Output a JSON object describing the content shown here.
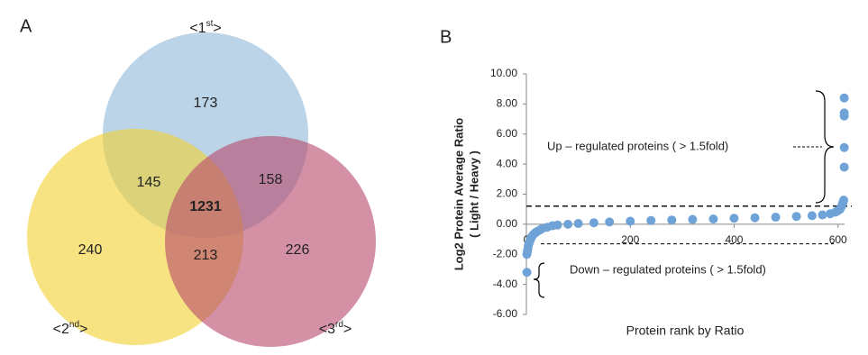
{
  "chart_data": [
    {
      "type": "venn",
      "panel_label": "A",
      "sets": [
        {
          "name_parts": [
            "<1",
            "st",
            ">"
          ],
          "color": "#8fb8d8"
        },
        {
          "name_parts": [
            "<2",
            "nd",
            ">"
          ],
          "color": "#f2d02e"
        },
        {
          "name_parts": [
            "<3",
            "rd",
            ">"
          ],
          "color": "#b8476a"
        }
      ],
      "regions": {
        "only_1": 173,
        "only_2": 240,
        "only_3": 226,
        "1_2": 145,
        "1_3": 158,
        "2_3": 213,
        "1_2_3": 1231
      }
    },
    {
      "type": "scatter",
      "panel_label": "B",
      "x_label": "Protein rank by Ratio",
      "y_label_lines": [
        "Log2 Protein Average Ratio",
        "( Light / Heavy )"
      ],
      "color": "#6fa3d8",
      "x": [
        1,
        1,
        2,
        3,
        4,
        6,
        8,
        10,
        13,
        16,
        20,
        25,
        30,
        40,
        50,
        60,
        80,
        100,
        130,
        160,
        200,
        240,
        280,
        320,
        360,
        400,
        440,
        480,
        520,
        550,
        570,
        585,
        595,
        600,
        604,
        607,
        609,
        610,
        611,
        612,
        612,
        612,
        612,
        612
      ],
      "values": [
        -3.2,
        -2.0,
        -1.8,
        -1.6,
        -1.4,
        -1.2,
        -1.0,
        -0.85,
        -0.7,
        -0.6,
        -0.5,
        -0.4,
        -0.3,
        -0.2,
        -0.1,
        -0.05,
        0.0,
        0.05,
        0.1,
        0.15,
        0.2,
        0.25,
        0.28,
        0.32,
        0.35,
        0.4,
        0.43,
        0.47,
        0.52,
        0.57,
        0.62,
        0.7,
        0.8,
        0.9,
        1.0,
        1.2,
        1.4,
        1.5,
        1.6,
        3.8,
        5.1,
        7.2,
        7.4,
        8.4
      ],
      "xlim": [
        0,
        630
      ],
      "xticks": [
        0,
        200,
        400,
        600
      ],
      "ylim": [
        -6,
        10
      ],
      "yticks": [
        {
          "value": -6,
          "label": "-6.00"
        },
        {
          "value": -4,
          "label": "-4.00"
        },
        {
          "value": -2,
          "label": "-2.00"
        },
        {
          "value": 0,
          "label": "0.00"
        },
        {
          "value": 2,
          "label": "2.00"
        },
        {
          "value": 4,
          "label": "4.00"
        },
        {
          "value": 6,
          "label": "6.00"
        },
        {
          "value": 8,
          "label": "8.00"
        },
        {
          "value": 10,
          "label": "10.00"
        }
      ],
      "reference_lines": [
        1.2,
        -1.3
      ],
      "annotations": [
        "Up – regulated proteins ( > 1.5fold)",
        "Down – regulated proteins ( > 1.5fold)"
      ]
    }
  ]
}
